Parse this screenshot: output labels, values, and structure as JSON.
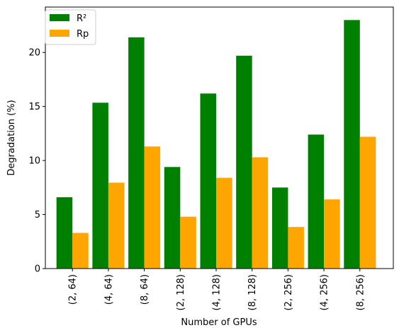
{
  "chart_data": {
    "type": "bar",
    "xlabel": "Number of GPUs",
    "ylabel": "Degradation (%)",
    "ylim": [
      0,
      24.2
    ],
    "yticks": [
      0,
      5,
      10,
      15,
      20
    ],
    "categories": [
      "(2, 64)",
      "(4, 64)",
      "(8, 64)",
      "(2, 128)",
      "(4, 128)",
      "(8, 128)",
      "(2, 256)",
      "(4, 256)",
      "(8, 256)"
    ],
    "series": [
      {
        "name": "R²",
        "color": "#008000",
        "values": [
          6.6,
          15.35,
          21.4,
          9.4,
          16.2,
          19.7,
          7.5,
          12.4,
          23.0
        ]
      },
      {
        "name": "Rp",
        "color": "#FFA500",
        "values": [
          3.3,
          7.95,
          11.3,
          4.8,
          8.4,
          10.3,
          3.85,
          6.4,
          12.2
        ]
      }
    ],
    "legend_position": "top-left",
    "grid": false
  }
}
